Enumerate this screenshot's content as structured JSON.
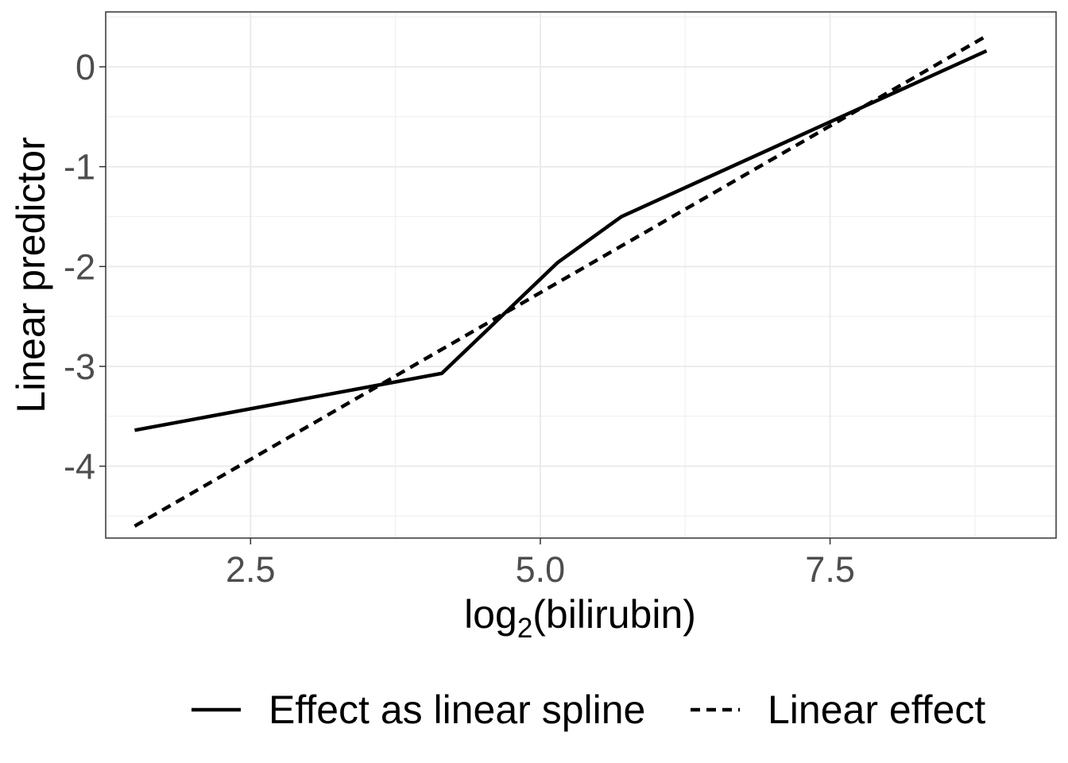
{
  "chart_data": {
    "type": "line",
    "xlabel": {
      "base": "log",
      "sub": "2",
      "rest": "(bilirubin)"
    },
    "ylabel": "Linear predictor",
    "xlim": [
      1.25,
      9.45
    ],
    "ylim": [
      -4.72,
      0.55
    ],
    "x_ticks": [
      2.5,
      5.0,
      7.5
    ],
    "x_tick_labels": [
      "2.5",
      "5.0",
      "7.5"
    ],
    "x_minor_ticks": [
      3.75,
      6.25,
      8.75
    ],
    "y_ticks": [
      0,
      -1,
      -2,
      -3,
      -4
    ],
    "y_tick_labels": [
      "0",
      "-1",
      "-2",
      "-3",
      "-4"
    ],
    "y_minor_ticks": [
      0.5,
      -0.5,
      -1.5,
      -2.5,
      -3.5,
      -4.5
    ],
    "grid": true,
    "legend_position": "bottom",
    "series": [
      {
        "name": "Effect as linear spline",
        "style": "solid",
        "color": "#000000",
        "x": [
          1.5,
          4.15,
          5.15,
          5.7,
          8.85
        ],
        "y": [
          -3.64,
          -3.07,
          -1.96,
          -1.5,
          0.16
        ]
      },
      {
        "name": "Linear effect",
        "style": "dashed",
        "color": "#000000",
        "x": [
          1.5,
          8.85
        ],
        "y": [
          -4.6,
          0.31
        ]
      }
    ]
  }
}
